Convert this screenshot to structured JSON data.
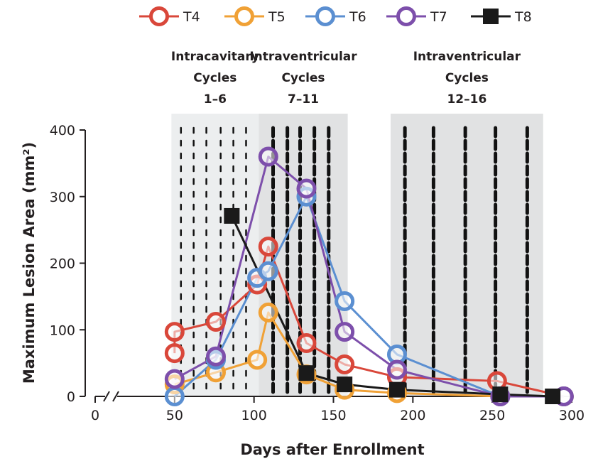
{
  "chart_data": {
    "type": "line",
    "xlabel": "Days after Enrollment",
    "ylabel": "Maximum Lesion Area (mm²)",
    "xlim": [
      0,
      300
    ],
    "ylim": [
      0,
      400
    ],
    "x_axis_break": true,
    "x_ticks": [
      {
        "value": 0,
        "label": "0"
      },
      {
        "value": 50,
        "label": "50"
      },
      {
        "value": 100,
        "label": "100"
      },
      {
        "value": 150,
        "label": "150"
      },
      {
        "value": 200,
        "label": "200"
      },
      {
        "value": 250,
        "label": "250"
      },
      {
        "value": 300,
        "label": "300"
      }
    ],
    "y_ticks": [
      {
        "value": 0,
        "label": "0"
      },
      {
        "value": 100,
        "label": "100"
      },
      {
        "value": 200,
        "label": "200"
      },
      {
        "value": 300,
        "label": "300"
      },
      {
        "value": 400,
        "label": "400"
      }
    ],
    "legend_position": "top",
    "phases": [
      {
        "name": "Intracavitary",
        "line1": "Intracavitary",
        "line2": "Cycles",
        "line3": "1–6",
        "x_start": 48,
        "x_end": 103,
        "shade": "#eceeef",
        "dose_days": [
          54,
          62,
          70,
          79,
          87,
          95
        ]
      },
      {
        "name": "Intraventricular A",
        "line1": "Intraventricular",
        "line2": "Cycles",
        "line3": "7–11",
        "x_start": 103,
        "x_end": 159,
        "shade": "#e1e2e3",
        "dose_days": [
          112,
          121,
          129,
          138,
          147
        ]
      },
      {
        "name": "Intraventricular B",
        "line1": "Intraventricular",
        "line2": "Cycles",
        "line3": "12–16",
        "x_start": 186,
        "x_end": 282,
        "shade": "#e1e2e3",
        "dose_days": [
          195,
          213,
          233,
          252,
          272
        ]
      }
    ],
    "series": [
      {
        "name": "T4",
        "color": "#d9473a",
        "marker": "circle",
        "points": [
          {
            "x": 50,
            "y": 65
          },
          {
            "x": 50,
            "y": 97
          },
          {
            "x": 76,
            "y": 112
          },
          {
            "x": 102,
            "y": 168
          },
          {
            "x": 109,
            "y": 225
          },
          {
            "x": 133,
            "y": 80
          },
          {
            "x": 157,
            "y": 48
          },
          {
            "x": 190,
            "y": 29
          },
          {
            "x": 253,
            "y": 23
          },
          {
            "x": 295,
            "y": 0
          }
        ]
      },
      {
        "name": "T5",
        "color": "#f0a136",
        "marker": "circle",
        "points": [
          {
            "x": 50,
            "y": 18
          },
          {
            "x": 76,
            "y": 36
          },
          {
            "x": 102,
            "y": 55
          },
          {
            "x": 109,
            "y": 126
          },
          {
            "x": 133,
            "y": 33
          },
          {
            "x": 157,
            "y": 10
          },
          {
            "x": 190,
            "y": 5
          },
          {
            "x": 255,
            "y": 0
          },
          {
            "x": 295,
            "y": 0
          }
        ]
      },
      {
        "name": "T6",
        "color": "#5b8fd1",
        "marker": "circle",
        "points": [
          {
            "x": 50,
            "y": 0
          },
          {
            "x": 76,
            "y": 55
          },
          {
            "x": 102,
            "y": 178
          },
          {
            "x": 109,
            "y": 188
          },
          {
            "x": 133,
            "y": 300
          },
          {
            "x": 157,
            "y": 143
          },
          {
            "x": 190,
            "y": 63
          },
          {
            "x": 255,
            "y": 0
          },
          {
            "x": 295,
            "y": 0
          }
        ]
      },
      {
        "name": "T7",
        "color": "#7d4fab",
        "marker": "circle",
        "points": [
          {
            "x": 50,
            "y": 26
          },
          {
            "x": 76,
            "y": 60
          },
          {
            "x": 109,
            "y": 360
          },
          {
            "x": 133,
            "y": 312
          },
          {
            "x": 157,
            "y": 97
          },
          {
            "x": 190,
            "y": 40
          },
          {
            "x": 255,
            "y": 0
          },
          {
            "x": 295,
            "y": 0
          }
        ]
      },
      {
        "name": "T8",
        "color": "#1a1a1a",
        "marker": "square",
        "points": [
          {
            "x": 86,
            "y": 271
          },
          {
            "x": 133,
            "y": 35
          },
          {
            "x": 157,
            "y": 18
          },
          {
            "x": 190,
            "y": 10
          },
          {
            "x": 255,
            "y": 3
          },
          {
            "x": 288,
            "y": 0
          }
        ]
      }
    ]
  }
}
